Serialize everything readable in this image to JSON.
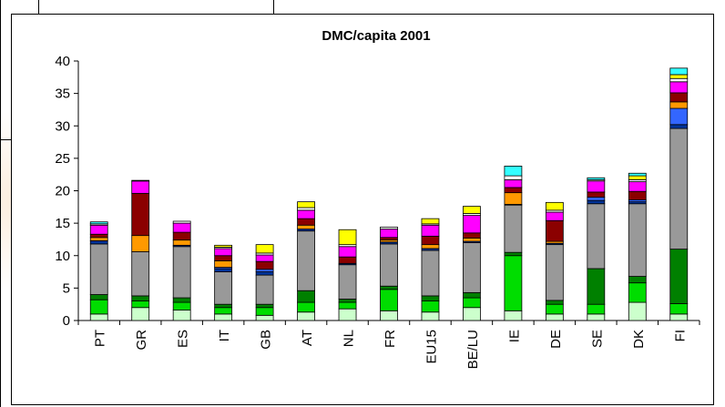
{
  "chart_data": {
    "type": "bar",
    "stacked": true,
    "title": "DMC/capita 2001",
    "xlabel": "",
    "ylabel": "",
    "ylim": [
      0,
      40
    ],
    "yticks": [
      0,
      5,
      10,
      15,
      20,
      25,
      30,
      35,
      40
    ],
    "grid": false,
    "legend": "none",
    "categories": [
      "PT",
      "GR",
      "ES",
      "IT",
      "GB",
      "AT",
      "NL",
      "FR",
      "EU15",
      "BE/LU",
      "IE",
      "DE",
      "SE",
      "DK",
      "FI"
    ],
    "series": [
      {
        "color": "#ccffcc",
        "values": [
          1.0,
          2.0,
          1.6,
          1.0,
          0.8,
          1.3,
          1.8,
          1.5,
          1.3,
          2.0,
          1.5,
          1.0,
          1.0,
          2.8,
          1.0
        ]
      },
      {
        "color": "#00dd00",
        "values": [
          2.2,
          1.0,
          1.2,
          1.0,
          1.2,
          1.5,
          1.0,
          3.3,
          1.7,
          1.5,
          8.5,
          1.5,
          1.5,
          3.0,
          1.6
        ]
      },
      {
        "color": "#008000",
        "values": [
          0.8,
          0.8,
          0.7,
          0.5,
          0.5,
          1.8,
          0.5,
          0.5,
          0.8,
          0.8,
          0.5,
          0.6,
          5.5,
          1.0,
          8.4
        ]
      },
      {
        "color": "#999999",
        "values": [
          7.8,
          6.8,
          7.9,
          5.0,
          4.5,
          9.2,
          5.3,
          6.5,
          7.0,
          7.7,
          7.3,
          8.6,
          10.0,
          11.2,
          18.6
        ]
      },
      {
        "color": "#003399",
        "values": [
          0.5,
          0.0,
          0.2,
          0.5,
          0.5,
          0.3,
          0.2,
          0.3,
          0.3,
          0.2,
          0.1,
          0.2,
          0.5,
          0.3,
          0.6
        ]
      },
      {
        "color": "#3366ff",
        "values": [
          0.0,
          0.0,
          0.0,
          0.2,
          0.4,
          0.0,
          0.0,
          0.0,
          0.0,
          0.0,
          0.0,
          0.0,
          0.5,
          0.3,
          2.5
        ]
      },
      {
        "color": "#ff9900",
        "values": [
          0.5,
          2.5,
          0.8,
          1.0,
          0.0,
          0.6,
          0.0,
          0.3,
          0.6,
          0.5,
          1.8,
          0.3,
          0.0,
          0.0,
          1.0
        ]
      },
      {
        "color": "#8b0000",
        "values": [
          0.5,
          6.5,
          1.2,
          0.8,
          1.2,
          1.0,
          1.0,
          0.4,
          1.3,
          0.8,
          0.8,
          3.2,
          0.8,
          1.3,
          1.4
        ]
      },
      {
        "color": "#ff00ff",
        "values": [
          1.4,
          1.9,
          1.4,
          1.1,
          1.0,
          1.3,
          1.6,
          1.3,
          1.7,
          2.7,
          1.2,
          1.3,
          1.7,
          1.5,
          1.7
        ]
      },
      {
        "color": "#ffffff",
        "values": [
          0.2,
          0.1,
          0.3,
          0.2,
          0.3,
          0.4,
          0.3,
          0.3,
          0.2,
          0.3,
          0.6,
          0.3,
          0.2,
          0.3,
          0.5
        ]
      },
      {
        "color": "#ffff00",
        "values": [
          0.0,
          0.0,
          0.0,
          0.3,
          1.3,
          0.9,
          2.3,
          0.0,
          0.8,
          1.1,
          0.0,
          1.2,
          0.0,
          0.6,
          0.6
        ]
      },
      {
        "color": "#33ffff",
        "values": [
          0.3,
          0.0,
          0.0,
          0.0,
          0.0,
          0.0,
          0.0,
          0.0,
          0.0,
          0.0,
          1.5,
          0.0,
          0.3,
          0.4,
          1.0
        ]
      }
    ]
  }
}
